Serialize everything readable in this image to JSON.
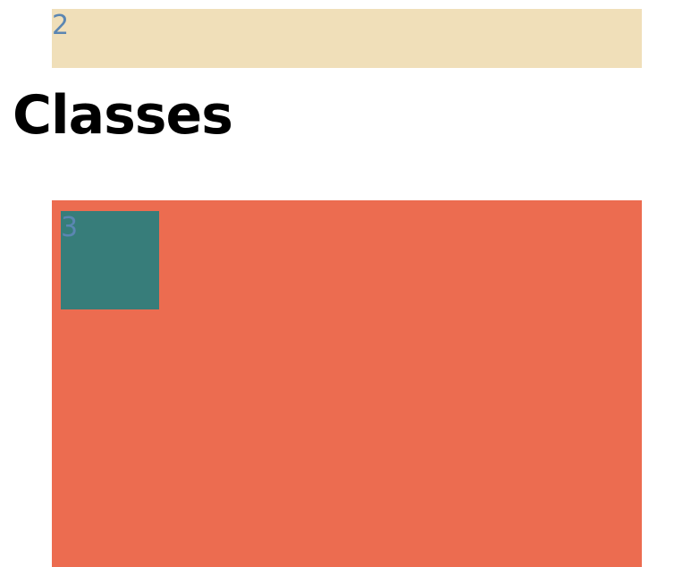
{
  "top_box": {
    "number": "2",
    "color": "#f0dfb9"
  },
  "heading": {
    "text": "Classes"
  },
  "main_box": {
    "color": "#ec6c50",
    "inner_square": {
      "number": "3",
      "color": "#377d7a"
    }
  },
  "colors": {
    "number_text": "#5b86b2",
    "heading_text": "#000000"
  }
}
